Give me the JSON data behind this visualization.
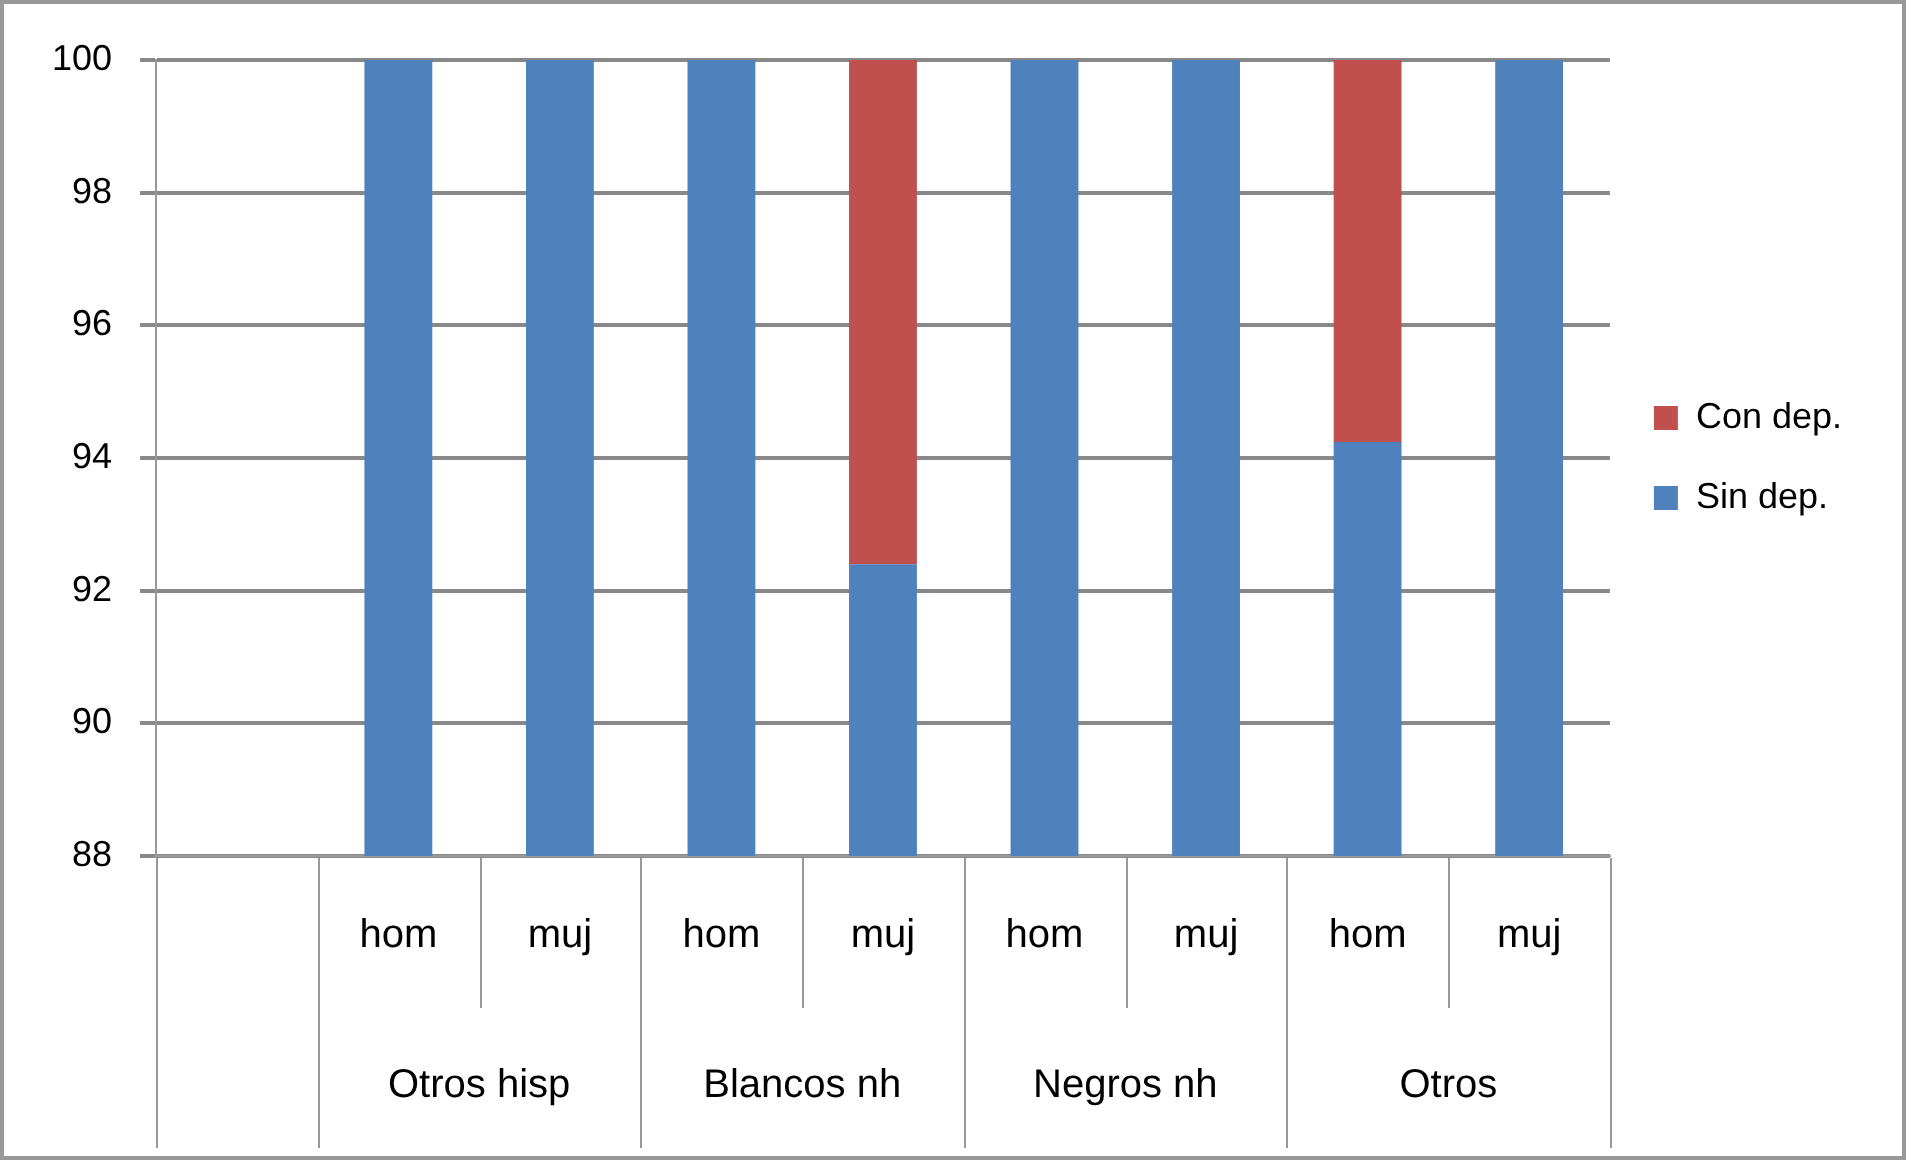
{
  "chart_data": {
    "type": "bar",
    "categories": [
      null,
      "hom",
      "muj",
      "hom",
      "muj",
      "hom",
      "muj",
      "hom",
      "muj"
    ],
    "series": [
      {
        "name": "Sin dep.",
        "color": "#4f81bd",
        "values": [
          null,
          100,
          100,
          100,
          92.4,
          100,
          100,
          94.24,
          100
        ]
      },
      {
        "name": "Con dep.",
        "color": "#c0504d",
        "values": [
          null,
          null,
          null,
          null,
          7.6,
          null,
          null,
          5.76,
          null
        ],
        "base": [
          null,
          null,
          null,
          null,
          92.4,
          null,
          null,
          94.24,
          null
        ]
      }
    ],
    "ylim": [
      88,
      100
    ],
    "yticks": [
      88,
      90,
      92,
      94,
      96,
      98,
      100
    ],
    "grid": "y",
    "legend": "right",
    "annotations": [
      "Otros hisp",
      "Blancos nh",
      "Negros nh",
      "Otros"
    ]
  }
}
